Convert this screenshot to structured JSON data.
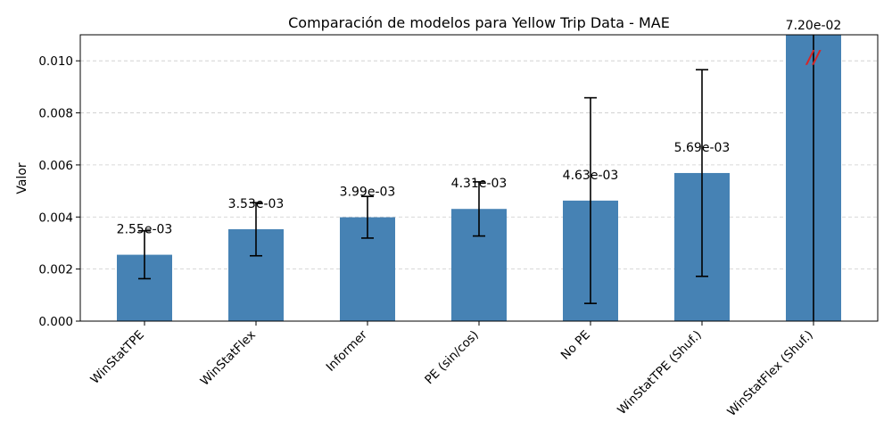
{
  "chart_data": {
    "type": "bar",
    "title": "Comparación de modelos para Yellow Trip Data - MAE",
    "xlabel": "",
    "ylabel": "Valor",
    "ylim": [
      0,
      0.011
    ],
    "yticks": [
      0.0,
      0.002,
      0.004,
      0.006,
      0.008,
      0.01
    ],
    "ytick_labels": [
      "0.000",
      "0.002",
      "0.004",
      "0.006",
      "0.008",
      "0.010"
    ],
    "grid": true,
    "bar_color": "#4682b4",
    "categories": [
      "WinStatTPE",
      "WinStatFlex",
      "Informer",
      "PE (sin/cos)",
      "No PE",
      "WinStatTPE (Shuf.)",
      "WinStatFlex (Shuf.)"
    ],
    "values": [
      0.00255,
      0.00353,
      0.00399,
      0.00431,
      0.00463,
      0.00569,
      0.072
    ],
    "errors": [
      0.00092,
      0.00102,
      0.0008,
      0.00104,
      0.00395,
      0.00397,
      0.072
    ],
    "data_labels": [
      "2.55e-03",
      "3.53e-03",
      "3.99e-03",
      "4.31e-03",
      "4.63e-03",
      "5.69e-03",
      "7.20e-02"
    ],
    "break_marker": "//",
    "break_marker_color": "#d62728"
  }
}
